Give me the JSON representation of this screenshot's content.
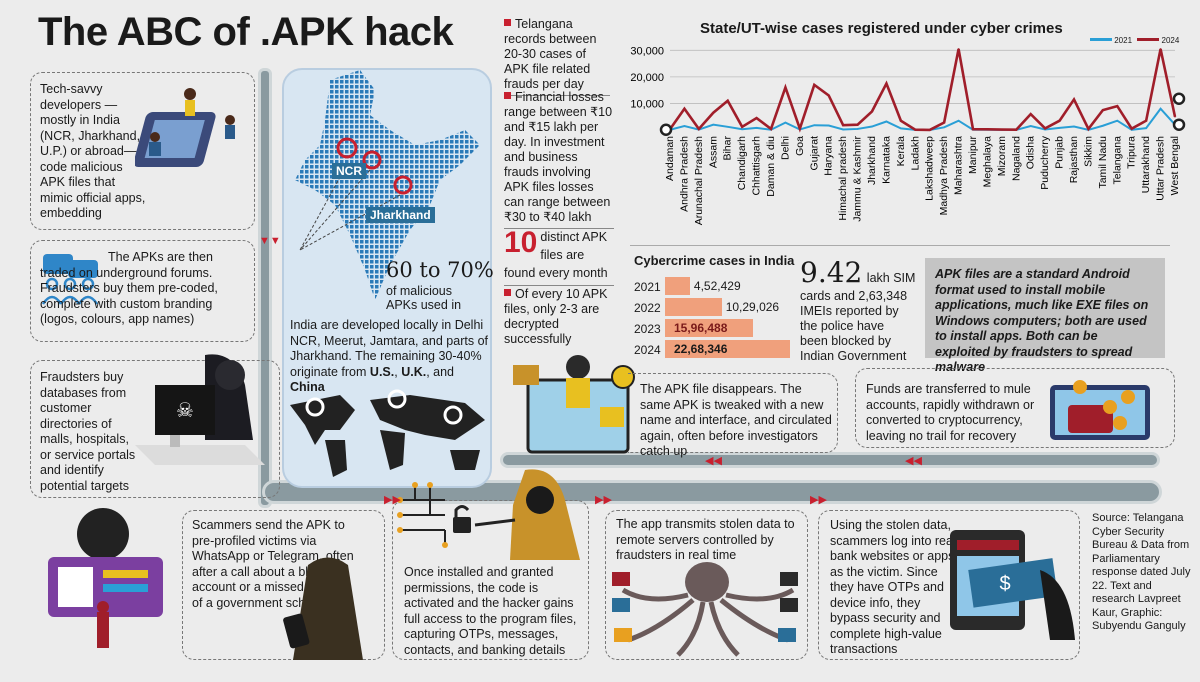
{
  "title": "The ABC of .APK hack",
  "steps": {
    "s1": "Tech-savvy developers — mostly in India (NCR, Jharkhand, U.P.) or abroad— code malicious APK files that mimic official apps, embedding spyware in them",
    "s2": "The APKs are then traded on underground forums. Fraudsters buy them pre-coded, complete with custom branding (logos, colours, app names)",
    "s3": "Fraudsters buy databases from customer directories of malls, hospitals, or service portals and identify potential targets",
    "s4": "Scammers send the APK to pre-profiled victims via WhatsApp or Telegram, often after a call about a blocked account or a missed benefit of a government scheme",
    "s5": "Once installed and granted permissions, the code is activated and the hacker gains full access to the program files, capturing OTPs, messages, contacts, and banking details",
    "s6": "The app transmits stolen data to remote servers controlled by fraudsters in real time",
    "s7": "Using the stolen data, scammers log into real bank websites or apps as the victim. Since they have OTPs and device info, they bypass security and complete high-value transactions",
    "s8": "Funds are transferred to mule accounts, rapidly withdrawn or converted to cryptocurrency, leaving no trail for recovery",
    "s9": "The APK file disappears. The same APK is tweaked with a new name and interface, and circulated again, often before investigators catch up"
  },
  "map": {
    "ncr": "NCR",
    "jharkhand": "Jharkhand",
    "pct": "60 to 70%",
    "pct_sub1": "of malicious",
    "pct_sub2": "APKs used in",
    "desc_a": "India are developed locally in Delhi NCR, Meerut, Jamtara, and parts of Jharkhand. The remaining 30-40% originate from",
    "us": "U.S.",
    "uk": "U.K.",
    "and": ", and",
    "china": "China"
  },
  "stats": {
    "t1": "Telangana records between 20-30 cases of APK file related frauds per day",
    "t2": "Financial losses range between ₹10 and ₹15 lakh per day. In investment and business frauds involving APK files losses can range between ₹30 to ₹40 lakh",
    "ten": "10",
    "ten_text": "distinct APK files are found every month",
    "t4": "Of every 10 APK files, only 2-3 are decrypted successfully"
  },
  "cyber": {
    "title": "Cybercrime cases in India",
    "years": [
      "2021",
      "2022",
      "2023",
      "2024"
    ],
    "labels": [
      "4,52,429",
      "10,29,026",
      "15,96,488",
      "22,68,346"
    ],
    "values": [
      452429,
      1029026,
      1596488,
      2268346
    ]
  },
  "sim": {
    "big": "9.42",
    "text1": "lakh SIM",
    "text2": "cards and 2,63,348 IMEIs reported by the police have been blocked by Indian Government"
  },
  "note": "APK files are a standard Android format used to install mobile applications, much like EXE files on Windows computers; both are used to install apps. Both can be exploited by fraudsters to spread malware",
  "source": "Source: Telangana Cyber Security Bureau & Data from Parliamentary response dated July 22. Text and research Lavpreet Kaur, Graphic: Subyendu Ganguly",
  "chart_data": {
    "type": "line",
    "title": "State/UT-wise cases registered under cyber crimes",
    "categories": [
      "Andaman",
      "Andhra Pradesh",
      "Arunachal Pradesh",
      "Assam",
      "Bihar",
      "Chandigarh",
      "Chhattisgarh",
      "Daman & diu",
      "Delhi",
      "Goa",
      "Gujarat",
      "Haryana",
      "Himachal pradesh",
      "Jammu & Kashmir",
      "Jharkhand",
      "Karnataka",
      "Kerala",
      "Ladakh",
      "Lakshadweep",
      "Madhya Pradesh",
      "Maharashtra",
      "Manipur",
      "Meghalaya",
      "Mizoram",
      "Nagaland",
      "Odisha",
      "Puducherry",
      "Punjab",
      "Rajasthan",
      "Sikkim",
      "Tamil Nadu",
      "Telangana",
      "Tripura",
      "Uttarakhand",
      "Uttar Pradesh",
      "West Bengal"
    ],
    "y_ticks": [
      "30,000",
      "20,000",
      "10,000"
    ],
    "ylim": [
      0,
      32000
    ],
    "legend_position": "top-right",
    "series": [
      {
        "name": "2021",
        "color": "#2a9fd6",
        "values": [
          100,
          1500,
          150,
          2000,
          1200,
          300,
          800,
          100,
          2800,
          200,
          1800,
          1700,
          200,
          400,
          1300,
          3200,
          600,
          50,
          10,
          1000,
          3500,
          100,
          80,
          50,
          30,
          1500,
          200,
          800,
          1300,
          50,
          1600,
          3500,
          80,
          700,
          8000,
          2000
        ]
      },
      {
        "name": "2024",
        "color": "#a01e2a",
        "values": [
          300,
          8000,
          400,
          6500,
          11000,
          1200,
          4500,
          400,
          16000,
          500,
          17000,
          13000,
          1800,
          2000,
          7000,
          17500,
          3500,
          100,
          30,
          2800,
          30500,
          300,
          250,
          150,
          100,
          6000,
          600,
          3500,
          11500,
          400,
          7500,
          9000,
          500,
          3500,
          30500,
          5000
        ]
      }
    ]
  }
}
